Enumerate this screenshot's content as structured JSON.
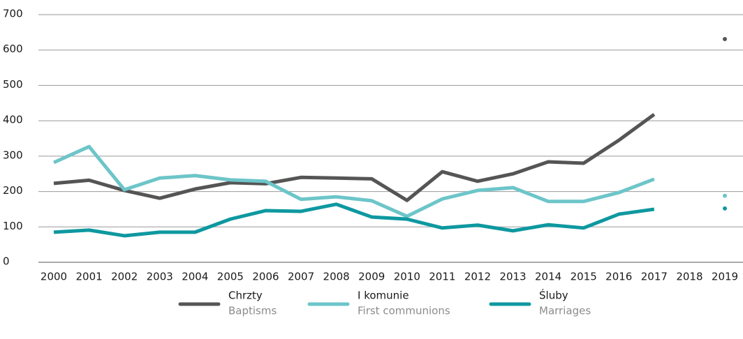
{
  "chart_data": {
    "type": "line",
    "categories": [
      "2000",
      "2001",
      "2002",
      "2003",
      "2004",
      "2005",
      "2006",
      "2007",
      "2008",
      "2009",
      "2010",
      "2011",
      "2012",
      "2013",
      "2014",
      "2015",
      "2016",
      "2017",
      "2018",
      "2019"
    ],
    "series": [
      {
        "name": "Chrzty",
        "translation": "Baptisms",
        "color": "#555555",
        "values": [
          223,
          232,
          203,
          181,
          207,
          225,
          222,
          240,
          238,
          236,
          175,
          256,
          229,
          250,
          284,
          280,
          345,
          418,
          null,
          631
        ]
      },
      {
        "name": "I komunie",
        "translation": "First communions",
        "color": "#6cc5c9",
        "values": [
          282,
          327,
          205,
          238,
          245,
          233,
          229,
          178,
          185,
          174,
          130,
          179,
          203,
          211,
          172,
          172,
          197,
          235,
          null,
          188
        ]
      },
      {
        "name": "Śluby",
        "translation": "Marriages",
        "color": "#0e98a0",
        "values": [
          85,
          91,
          75,
          85,
          85,
          122,
          146,
          144,
          164,
          128,
          122,
          97,
          105,
          89,
          106,
          97,
          136,
          150,
          null,
          152
        ]
      }
    ],
    "ylim": [
      0,
      700
    ],
    "yticks": [
      0,
      100,
      200,
      300,
      400,
      500,
      600,
      700
    ],
    "grid": true
  }
}
